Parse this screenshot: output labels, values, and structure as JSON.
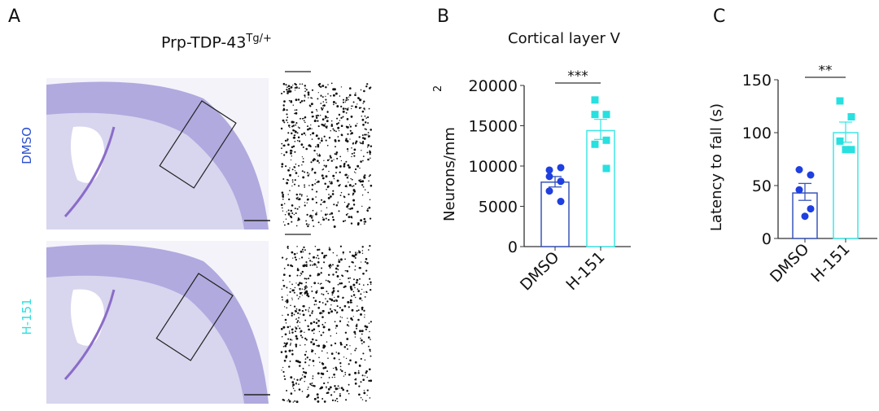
{
  "panels": {
    "a": "A",
    "b": "B",
    "c": "C"
  },
  "panel_a": {
    "title": "Prp-TDP-43",
    "title_sup": "Tg/+",
    "rows": [
      {
        "label": "DMSO",
        "color": "#2b4fd0"
      },
      {
        "label": "H-151",
        "color": "#2fe0e0"
      }
    ]
  },
  "colors": {
    "dmso": "#1f3fe0",
    "h151": "#28e0e0",
    "dmso_bar": "#3a55b8",
    "h151_bar": "#40e6e6",
    "stain": "#9a92d6"
  },
  "chart_data": [
    {
      "type": "bar",
      "title": "Cortical layer V",
      "ylabel": "Neurons/mm",
      "ylabel_sup": "2",
      "categories": [
        "DMSO",
        "H-151"
      ],
      "ylim": [
        0,
        20000
      ],
      "yticks": [
        0,
        5000,
        10000,
        15000,
        20000
      ],
      "means": [
        8000,
        14400
      ],
      "sem": [
        [
          7400,
          8700
        ],
        [
          13300,
          15800
        ]
      ],
      "points": [
        [
          9500,
          9800,
          8700,
          8100,
          6900,
          5600
        ],
        [
          18200,
          16400,
          16400,
          13200,
          12700,
          9700
        ]
      ],
      "significance": "***"
    },
    {
      "type": "bar",
      "title": "",
      "ylabel": "Latency to fall (s)",
      "ylabel_sup": "",
      "categories": [
        "DMSO",
        "H-151"
      ],
      "ylim": [
        0,
        150
      ],
      "yticks": [
        0,
        50,
        100,
        150
      ],
      "means": [
        43,
        100
      ],
      "sem": [
        [
          36,
          52
        ],
        [
          91,
          110
        ]
      ],
      "points": [
        [
          65,
          60,
          46,
          28,
          21
        ],
        [
          130,
          115,
          92,
          84,
          84
        ]
      ],
      "significance": "**"
    }
  ]
}
